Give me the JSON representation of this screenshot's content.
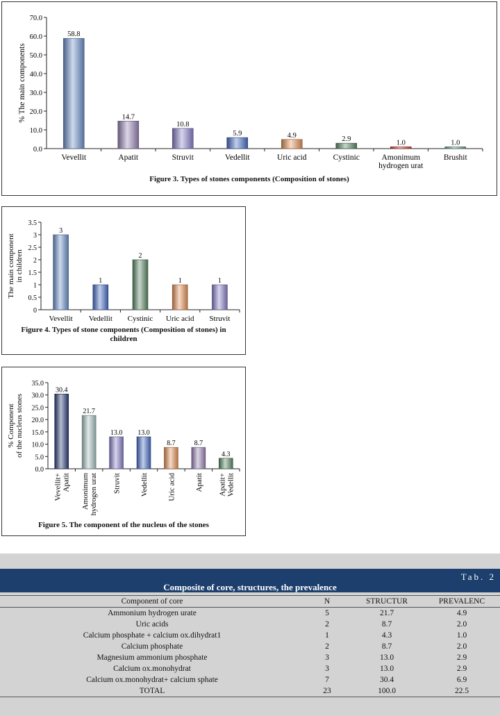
{
  "chart_data": [
    {
      "type": "bar",
      "title": "Figure 3. Types of stones components (Composition of stones)",
      "ylabel": "% The main components",
      "xlabel": "",
      "ylim": [
        0,
        70
      ],
      "yticks": [
        "0.0",
        "10.0",
        "20.0",
        "30.0",
        "40.0",
        "50.0",
        "60.0",
        "70.0"
      ],
      "categories": [
        "Vevellit",
        "Apatit",
        "Struvit",
        "Vedellit",
        "Uric acid",
        "Cystinic",
        "Amonimum hydrogen urat",
        "Brushit"
      ],
      "values": [
        58.8,
        14.7,
        10.8,
        5.9,
        4.9,
        2.9,
        1.0,
        1.0
      ],
      "labels": [
        "58.8",
        "14.7",
        "10.8",
        "5.9",
        "4.9",
        "2.9",
        "1.0",
        "1.0"
      ],
      "colors": [
        "#6f94cf",
        "#9c87b8",
        "#8a83cf",
        "#4a70c9",
        "#e9955c",
        "#5e8a68",
        "#d64a3e",
        "#76a996"
      ]
    },
    {
      "type": "bar",
      "title": "Figure 4. Types of stone components (Composition of stones) in children",
      "ylabel": "The main component in children",
      "xlabel": "",
      "ylim": [
        0,
        3.5
      ],
      "yticks": [
        "0",
        "0.5",
        "1",
        "1.5",
        "2",
        "2.5",
        "3",
        "3.5"
      ],
      "categories": [
        "Vevellit",
        "Vedellit",
        "Cystinic",
        "Uric acid",
        "Struvit"
      ],
      "values": [
        3,
        1,
        2,
        1,
        1
      ],
      "labels": [
        "3",
        "1",
        "2",
        "1",
        "1"
      ],
      "colors": [
        "#6f94cf",
        "#4a70c9",
        "#5e8a68",
        "#e9955c",
        "#8a83cf"
      ]
    },
    {
      "type": "bar",
      "title": "Figure 5. The component of the nucleus of the stones",
      "ylabel": "% Component of the nucleus stones",
      "xlabel": "",
      "ylim": [
        0,
        35
      ],
      "yticks": [
        "0.0",
        "5.0",
        "10.0",
        "15.0",
        "20.0",
        "25.0",
        "30.0",
        "35.0"
      ],
      "categories": [
        "Vevellit+ Apatit",
        "Amonimum hydrogen urat",
        "Struvit",
        "Vedellit",
        "Uric acid",
        "Apatit",
        "Apatit+ Vedellit"
      ],
      "values": [
        30.4,
        21.7,
        13.0,
        13.0,
        8.7,
        8.7,
        4.3
      ],
      "labels": [
        "30.4",
        "21.7",
        "13.0",
        "13.0",
        "8.7",
        "8.7",
        "4.3"
      ],
      "colors": [
        "#2c3f7a",
        "#a9c4c4",
        "#8a83cf",
        "#4a70c9",
        "#e9955c",
        "#9c87b8",
        "#5e8a68"
      ]
    }
  ],
  "table": {
    "number": "Tab. 2",
    "title": "Composite of core, structures, the prevalence",
    "headers": [
      "Component of core",
      "N",
      "STRUCTUR",
      "PREVALENC"
    ],
    "rows": [
      [
        "Ammonium hydrogen urate",
        "5",
        "21.7",
        "4.9"
      ],
      [
        "Uric acids",
        "2",
        "8.7",
        "2.0"
      ],
      [
        "Calcium phosphate + calcium ox.dihydrat1",
        "1",
        "4.3",
        "1.0"
      ],
      [
        "Calcium phosphate",
        "2",
        "8.7",
        "2.0"
      ],
      [
        "Magnesium ammonium phosphate",
        "3",
        "13.0",
        "2.9"
      ],
      [
        "Calcium ox.monohydrat",
        "3",
        "13.0",
        "2.9"
      ],
      [
        "Calcium ox.monohydrat+ calcium  sphate",
        "7",
        "30.4",
        "6.9"
      ],
      [
        "TOTAL",
        "23",
        "100.0",
        "22.5"
      ]
    ]
  }
}
